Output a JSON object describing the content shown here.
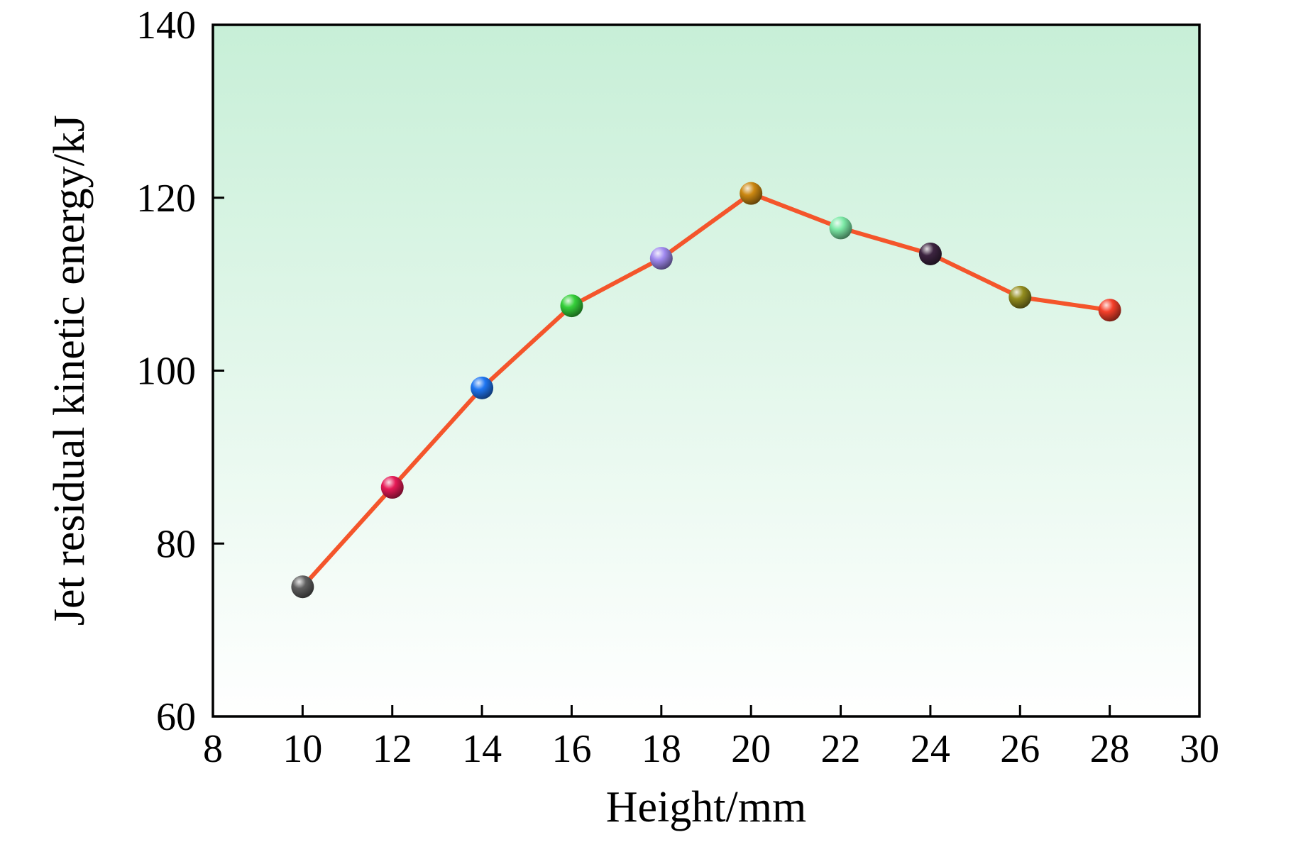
{
  "chart_data": {
    "type": "line",
    "title": "",
    "xlabel": "Height/mm",
    "ylabel": "Jet residual kinetic energy/kJ",
    "x": [
      10,
      12,
      14,
      16,
      18,
      20,
      22,
      24,
      26,
      28
    ],
    "y": [
      75,
      86.5,
      98,
      107.5,
      113,
      120.5,
      116.5,
      113.5,
      108.5,
      107
    ],
    "xlim": [
      8,
      30
    ],
    "ylim": [
      60,
      140
    ],
    "x_ticks": [
      8,
      10,
      12,
      14,
      16,
      18,
      20,
      22,
      24,
      26,
      28,
      30
    ],
    "y_ticks": [
      60,
      80,
      100,
      120,
      140
    ],
    "grid": false,
    "line_color": "#f4552b",
    "point_colors": [
      "#5f5f5f",
      "#e61a56",
      "#1e76f2",
      "#35d03a",
      "#a18af0",
      "#cc8812",
      "#7ce9a6",
      "#3c2440",
      "#938d1e",
      "#f5402a"
    ],
    "plot_bg_top": "#c7efd7",
    "plot_bg_bottom": "#ffffff",
    "frame_color": "#000000"
  }
}
